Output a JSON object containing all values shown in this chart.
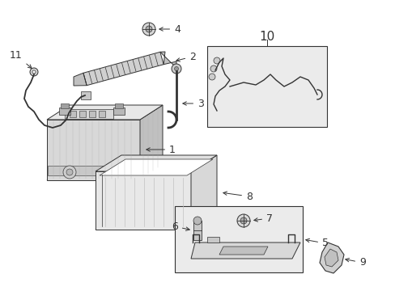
{
  "bg_color": "#ffffff",
  "lc": "#333333",
  "lc2": "#555555",
  "fill_light": "#e8e8e8",
  "fill_mid": "#d0d0d0",
  "fill_dark": "#b8b8b8",
  "fill_box": "#e4e4e4",
  "fs": 9,
  "fs_big": 11,
  "lw": 0.7,
  "figsize": [
    4.89,
    3.6
  ],
  "dpi": 100
}
